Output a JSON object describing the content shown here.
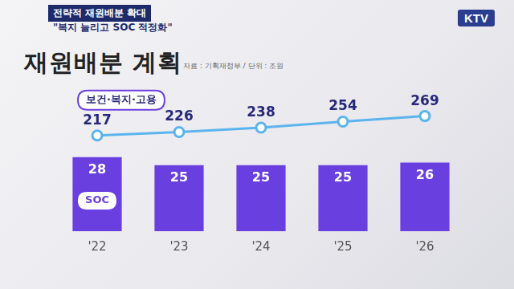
{
  "header": {
    "tag": "전략적 재원배분 확대",
    "subtitle": "\"복지 늘리고 SOC 적정화\"",
    "logo": "KTV"
  },
  "chart_data": {
    "type": "bar",
    "title": "재원배분 계획",
    "source": "자료 : 기획재정부 / 단위 : 조원",
    "categories": [
      "'22",
      "'23",
      "'24",
      "'25",
      "'26"
    ],
    "series": [
      {
        "name": "SOC",
        "type": "bar",
        "color": "#6a3fe0",
        "values": [
          28,
          25,
          25,
          25,
          26
        ]
      },
      {
        "name": "보건·복지·고용",
        "type": "line",
        "color": "#5bb4ee",
        "axis": "y2",
        "marker": "circle",
        "line_style": "solid",
        "values": [
          217,
          226,
          238,
          254,
          269
        ]
      }
    ],
    "ylim": [
      0,
      55
    ],
    "y2lim": [
      -40,
      350
    ],
    "data_labels": true,
    "tick_labels": "x",
    "grid": false
  }
}
